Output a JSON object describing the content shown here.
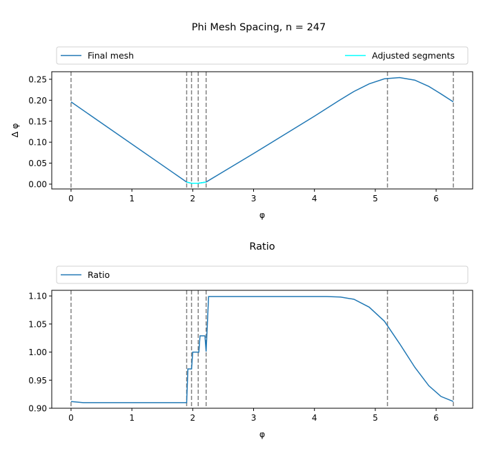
{
  "chart_data": [
    {
      "type": "line",
      "title": "Phi Mesh Spacing, n = 247",
      "xlabel": "φ",
      "ylabel": "Δ φ",
      "xlim": [
        -0.317,
        6.6
      ],
      "ylim": [
        -0.0115,
        0.268
      ],
      "xticks": [
        0,
        1,
        2,
        3,
        4,
        5,
        6
      ],
      "yticks": [
        0.0,
        0.05,
        0.1,
        0.15,
        0.2,
        0.25
      ],
      "ytick_labels": [
        "0.00",
        "0.05",
        "0.10",
        "0.15",
        "0.20",
        "0.25"
      ],
      "legend_placement": "top (above axes)",
      "vlines": [
        0,
        1.9,
        1.98,
        2.09,
        2.22,
        5.2,
        6.283
      ],
      "vline_color": "#808080",
      "series": [
        {
          "name": "Final mesh",
          "color": "#1f77b4",
          "x": [
            0,
            1.9,
            1.98,
            2.09,
            2.22,
            2.3,
            3.0,
            4.0,
            4.4,
            4.65,
            4.9,
            5.15,
            5.4,
            5.65,
            5.88,
            6.08,
            6.283
          ],
          "y": [
            0.196,
            0.005,
            0.002,
            0.002,
            0.005,
            0.012,
            0.073,
            0.162,
            0.199,
            0.221,
            0.239,
            0.251,
            0.254,
            0.248,
            0.233,
            0.215,
            0.196
          ]
        },
        {
          "name": "Adjusted segments",
          "color": "#00ffff",
          "x": [
            1.9,
            1.98,
            2.09,
            2.22
          ],
          "y": [
            0.005,
            0.002,
            0.002,
            0.005
          ]
        }
      ]
    },
    {
      "type": "line",
      "title": "Ratio",
      "xlabel": "φ",
      "ylabel": "",
      "xlim": [
        -0.317,
        6.6
      ],
      "ylim": [
        0.9,
        1.11
      ],
      "xticks": [
        0,
        1,
        2,
        3,
        4,
        5,
        6
      ],
      "yticks": [
        0.9,
        0.95,
        1.0,
        1.05,
        1.1
      ],
      "ytick_labels": [
        "0.90",
        "0.95",
        "1.00",
        "1.05",
        "1.10"
      ],
      "legend_placement": "top (above axes)",
      "vlines": [
        0,
        1.9,
        1.98,
        2.09,
        2.22,
        5.2,
        6.283
      ],
      "vline_color": "#808080",
      "series": [
        {
          "name": "Ratio",
          "color": "#1f77b4",
          "x": [
            0,
            0.2,
            1.9,
            1.92,
            1.98,
            2.0,
            2.1,
            2.12,
            2.2,
            2.22,
            2.26,
            4.2,
            4.43,
            4.65,
            4.9,
            5.15,
            5.4,
            5.65,
            5.88,
            6.08,
            6.283
          ],
          "y": [
            0.912,
            0.91,
            0.91,
            0.97,
            0.97,
            1.0,
            1.0,
            1.029,
            1.029,
            1.001,
            1.099,
            1.099,
            1.098,
            1.094,
            1.08,
            1.055,
            1.015,
            0.973,
            0.94,
            0.921,
            0.912
          ]
        }
      ]
    }
  ]
}
